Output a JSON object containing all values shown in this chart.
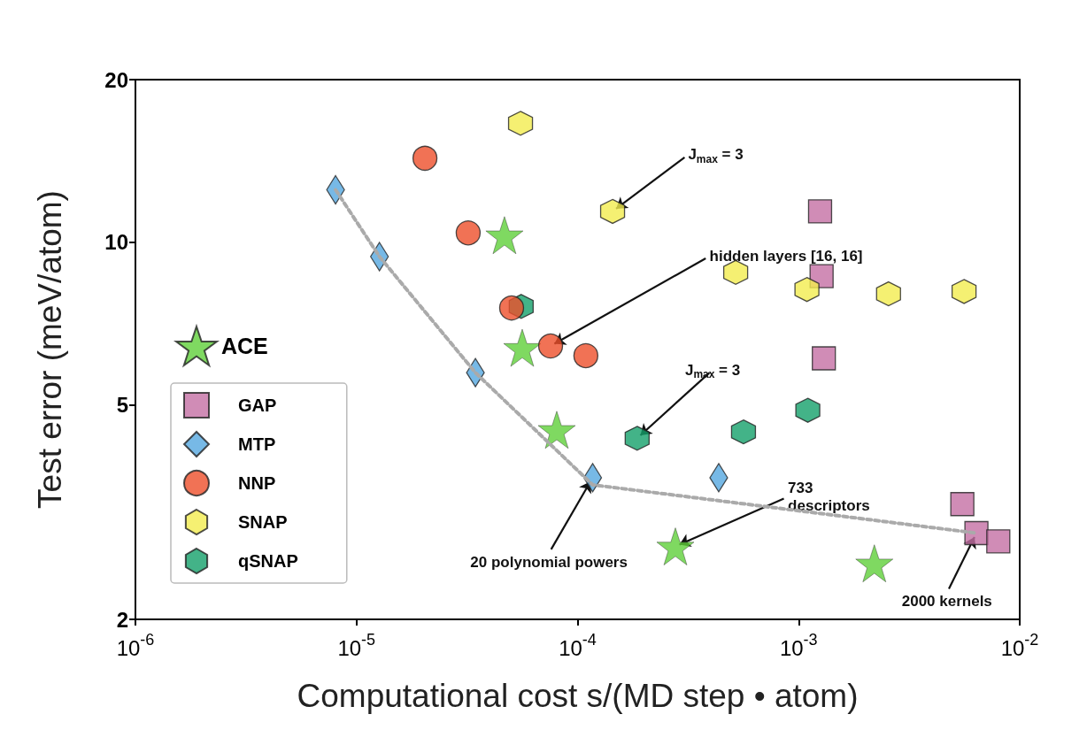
{
  "chart_data": {
    "type": "scatter",
    "xlabel": "Computational cost s/(MD step • atom)",
    "ylabel": "Test error (meV/atom)",
    "log": "xy",
    "grid": false,
    "legend": "left",
    "xlim": [
      1e-06,
      0.01
    ],
    "ylim": [
      2,
      20
    ],
    "xticks": [
      {
        "value": 1e-06,
        "label": "10$^{-6}$"
      },
      {
        "value": 1e-05,
        "label": "10$^{-5}$"
      },
      {
        "value": 0.0001,
        "label": "10$^{-4}$"
      },
      {
        "value": 0.001,
        "label": "10$^{-3}$"
      },
      {
        "value": 0.01,
        "label": "10$^{-2}$"
      }
    ],
    "yticks": [
      2,
      5,
      10,
      20
    ],
    "series": [
      {
        "name": "ACE",
        "color": "#5fcf3a",
        "marker": "star",
        "x": [
          4.67e-05,
          5.62e-05,
          8.05e-05,
          0.000277,
          0.0022
        ],
        "values": [
          10.3,
          6.37,
          4.49,
          2.73,
          2.54
        ]
      },
      {
        "name": "GAP",
        "color": "#c46fa4",
        "marker": "square",
        "x": [
          0.00125,
          0.00127,
          0.0013,
          0.0055,
          0.00637,
          0.008
        ],
        "values": [
          11.4,
          8.65,
          6.09,
          3.27,
          2.89,
          2.79
        ]
      },
      {
        "name": "MTP",
        "color": "#55a8e0",
        "marker": "diamond",
        "x": [
          8.04e-06,
          1.27e-05,
          3.45e-05,
          0.000117,
          0.000435
        ],
        "values": [
          12.5,
          9.4,
          5.73,
          3.66,
          3.66
        ]
      },
      {
        "name": "NNP",
        "color": "#ee4f2b",
        "marker": "circle",
        "x": [
          2.04e-05,
          3.2e-05,
          5.03e-05,
          7.55e-05,
          0.000109
        ],
        "values": [
          14.3,
          10.4,
          7.55,
          6.42,
          6.16
        ]
      },
      {
        "name": "SNAP",
        "color": "#f2ec4f",
        "x": [
          5.52e-05,
          0.000144,
          0.000519,
          0.00109,
          0.00255,
          0.0056
        ],
        "values": [
          16.6,
          11.4,
          8.79,
          8.17,
          8.02,
          8.1
        ]
      },
      {
        "name": "qSNAP",
        "color": "#14a06a",
        "x": [
          5.56e-05,
          0.000186,
          0.000563,
          0.0011
        ],
        "values": [
          7.6,
          4.33,
          4.45,
          4.88
        ]
      },
      {
        "type": "line",
        "color": "#aaaaaa",
        "line_style": "dashed",
        "marker": "none",
        "x": [
          8.04e-06,
          1.27e-05,
          3.45e-05,
          0.000117,
          0.00637
        ],
        "values": [
          12.5,
          9.4,
          5.73,
          3.55,
          2.89
        ]
      }
    ],
    "annotations": [
      {
        "text": "J$_{max}$ = 3",
        "x": 0.000144,
        "y": 11.4
      },
      {
        "text": "hidden layers [16, 16]",
        "x": 7.55e-05,
        "y": 6.42
      },
      {
        "text": "J$_{max}$ = 3",
        "x": 0.000186,
        "y": 4.33
      },
      {
        "text": "733\ndescriptors",
        "x": 0.000277,
        "y": 2.73
      },
      {
        "text": "20 polynomial powers",
        "x": 0.000117,
        "y": 3.66
      },
      {
        "text": "2000 kernels",
        "x": 0.00637,
        "y": 2.89
      }
    ]
  }
}
